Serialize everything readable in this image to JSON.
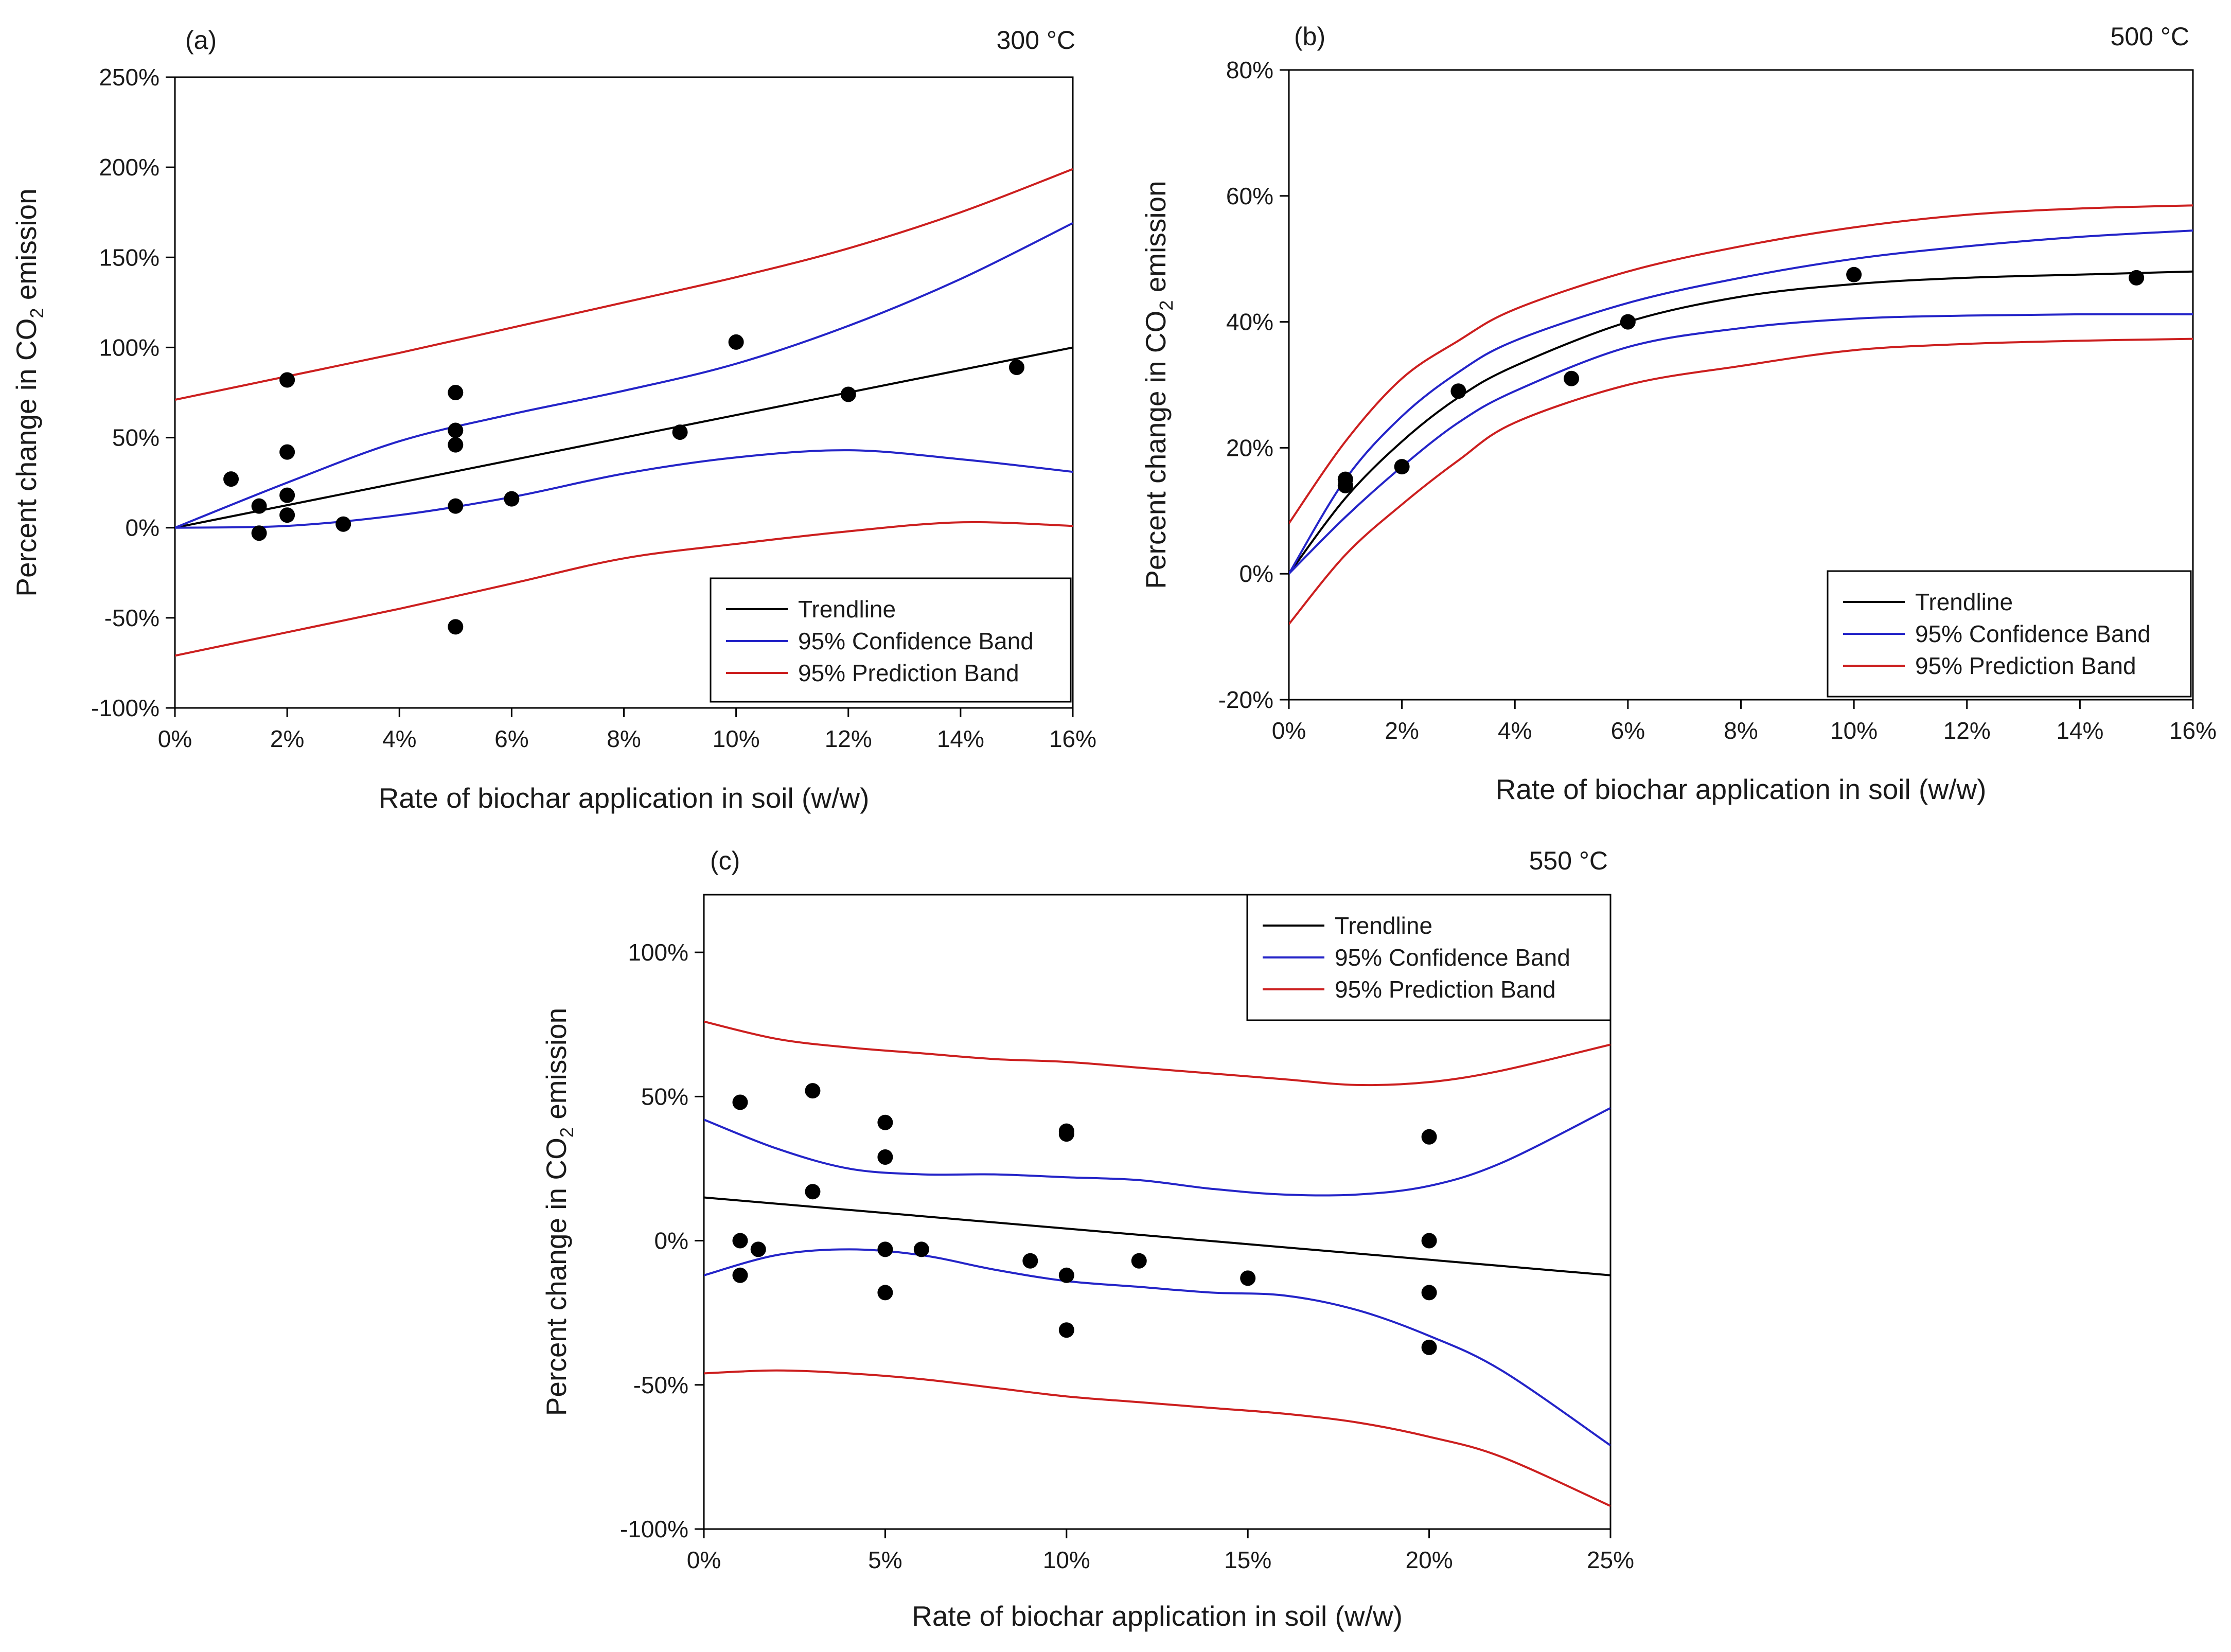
{
  "figure": {
    "colors": {
      "trend": "#000000",
      "confidence": "#2424c8",
      "prediction": "#cc1f1f",
      "point": "#000000"
    }
  },
  "chart_data": [
    {
      "type": "scatter",
      "panel_label": "(a)",
      "temperature_label": "300 °C",
      "xlabel": "Rate of biochar application in soil (w/w)",
      "ylabel_prefix": "Percent change in CO",
      "ylabel_sub": "2",
      "ylabel_suffix": " emission",
      "xlim": [
        0,
        16
      ],
      "ylim": [
        -100,
        250
      ],
      "xticks": [
        0,
        2,
        4,
        6,
        8,
        10,
        12,
        14,
        16
      ],
      "xtick_labels": [
        "0%",
        "2%",
        "4%",
        "6%",
        "8%",
        "10%",
        "12%",
        "14%",
        "16%"
      ],
      "yticks": [
        -100,
        -50,
        0,
        50,
        100,
        150,
        200,
        250
      ],
      "ytick_labels": [
        "-100%",
        "-50%",
        "0%",
        "50%",
        "100%",
        "150%",
        "200%",
        "250%"
      ],
      "legend": {
        "position": "bottom-right",
        "entries": [
          {
            "key": "trend",
            "label": "Trendline"
          },
          {
            "key": "confidence",
            "label": "95% Confidence Band"
          },
          {
            "key": "prediction",
            "label": "95% Prediction Band"
          }
        ]
      },
      "points": [
        [
          1,
          27
        ],
        [
          1.5,
          12
        ],
        [
          1.5,
          -3
        ],
        [
          2,
          82
        ],
        [
          2,
          42
        ],
        [
          2,
          18
        ],
        [
          2,
          7
        ],
        [
          3,
          2
        ],
        [
          5,
          75
        ],
        [
          5,
          54
        ],
        [
          5,
          46
        ],
        [
          5,
          12
        ],
        [
          5,
          -55
        ],
        [
          6,
          16
        ],
        [
          9,
          53
        ],
        [
          10,
          103
        ],
        [
          12,
          74
        ],
        [
          15,
          89
        ]
      ],
      "series": [
        {
          "name": "Trendline",
          "color_key": "trend",
          "x": [
            0,
            16
          ],
          "y": [
            0,
            100
          ]
        },
        {
          "name": "95% Confidence Band (upper)",
          "color_key": "confidence",
          "x": [
            0,
            2,
            4,
            6,
            8,
            10,
            12,
            14,
            16
          ],
          "y": [
            0,
            25,
            48,
            63,
            76,
            91,
            112,
            138,
            169
          ]
        },
        {
          "name": "95% Confidence Band (lower)",
          "color_key": "confidence",
          "x": [
            0,
            2,
            4,
            6,
            8,
            10,
            12,
            14,
            16
          ],
          "y": [
            0,
            1,
            7,
            17,
            30,
            39,
            43,
            38,
            31
          ]
        },
        {
          "name": "95% Prediction Band (upper)",
          "color_key": "prediction",
          "x": [
            0,
            2,
            4,
            6,
            8,
            10,
            12,
            14,
            16
          ],
          "y": [
            71,
            84,
            97,
            111,
            125,
            139,
            155,
            175,
            199
          ]
        },
        {
          "name": "95% Prediction Band (lower)",
          "color_key": "prediction",
          "x": [
            0,
            2,
            4,
            6,
            8,
            10,
            12,
            14,
            16
          ],
          "y": [
            -71,
            -58,
            -45,
            -31,
            -17,
            -9,
            -2,
            3,
            1
          ]
        }
      ]
    },
    {
      "type": "scatter",
      "panel_label": "(b)",
      "temperature_label": "500 °C",
      "xlabel": "Rate of biochar application in soil (w/w)",
      "ylabel_prefix": "Percent change in CO",
      "ylabel_sub": "2",
      "ylabel_suffix": " emission",
      "xlim": [
        0,
        16
      ],
      "ylim": [
        -20,
        80
      ],
      "xticks": [
        0,
        2,
        4,
        6,
        8,
        10,
        12,
        14,
        16
      ],
      "xtick_labels": [
        "0%",
        "2%",
        "4%",
        "6%",
        "8%",
        "10%",
        "12%",
        "14%",
        "16%"
      ],
      "yticks": [
        -20,
        0,
        20,
        40,
        60,
        80
      ],
      "ytick_labels": [
        "-20%",
        "0%",
        "20%",
        "40%",
        "60%",
        "80%"
      ],
      "legend": {
        "position": "bottom-right",
        "entries": [
          {
            "key": "trend",
            "label": "Trendline"
          },
          {
            "key": "confidence",
            "label": "95% Confidence Band"
          },
          {
            "key": "prediction",
            "label": "95% Prediction Band"
          }
        ]
      },
      "points": [
        [
          1,
          15
        ],
        [
          1,
          14
        ],
        [
          2,
          17
        ],
        [
          3,
          29
        ],
        [
          5,
          31
        ],
        [
          6,
          40
        ],
        [
          10,
          47.5
        ],
        [
          15,
          47
        ]
      ],
      "series": [
        {
          "name": "Trendline",
          "color_key": "trend",
          "x": [
            0,
            1,
            2,
            3,
            4,
            6,
            8,
            10,
            12,
            14,
            16
          ],
          "y": [
            0,
            12,
            21,
            28,
            33,
            40,
            44,
            46,
            47,
            47.5,
            48
          ]
        },
        {
          "name": "95% Confidence Band (upper)",
          "color_key": "confidence",
          "x": [
            0,
            1,
            2,
            3,
            4,
            6,
            8,
            10,
            12,
            14,
            16
          ],
          "y": [
            0,
            15,
            25,
            32,
            37,
            43,
            47,
            50,
            52,
            53.5,
            54.5
          ]
        },
        {
          "name": "95% Confidence Band (lower)",
          "color_key": "confidence",
          "x": [
            0,
            1,
            2,
            3,
            4,
            6,
            8,
            10,
            12,
            14,
            16
          ],
          "y": [
            0,
            9,
            17,
            24,
            29,
            36,
            39,
            40.5,
            41,
            41.2,
            41.2
          ]
        },
        {
          "name": "95% Prediction Band (upper)",
          "color_key": "prediction",
          "x": [
            0,
            1,
            2,
            3,
            4,
            6,
            8,
            10,
            12,
            14,
            16
          ],
          "y": [
            8,
            21,
            31,
            37,
            42,
            48,
            52,
            55,
            57,
            58,
            58.5
          ]
        },
        {
          "name": "95% Prediction Band (lower)",
          "color_key": "prediction",
          "x": [
            0,
            1,
            2,
            3,
            4,
            6,
            8,
            10,
            12,
            14,
            16
          ],
          "y": [
            -8,
            3,
            11,
            18,
            24,
            30,
            33,
            35.5,
            36.5,
            37,
            37.3
          ]
        }
      ]
    },
    {
      "type": "scatter",
      "panel_label": "(c)",
      "temperature_label": "550 °C",
      "xlabel": "Rate of biochar application in soil (w/w)",
      "ylabel_prefix": "Percent change in CO",
      "ylabel_sub": "2",
      "ylabel_suffix": " emission",
      "xlim": [
        0,
        25
      ],
      "ylim": [
        -100,
        120
      ],
      "xticks": [
        0,
        5,
        10,
        15,
        20,
        25
      ],
      "xtick_labels": [
        "0%",
        "5%",
        "10%",
        "15%",
        "20%",
        "25%"
      ],
      "yticks": [
        -100,
        -50,
        0,
        50,
        100
      ],
      "ytick_labels": [
        "-100%",
        "-50%",
        "0%",
        "50%",
        "100%"
      ],
      "legend": {
        "position": "top-right",
        "entries": [
          {
            "key": "trend",
            "label": "Trendline"
          },
          {
            "key": "confidence",
            "label": "95% Confidence Band"
          },
          {
            "key": "prediction",
            "label": "95% Prediction Band"
          }
        ]
      },
      "points": [
        [
          1,
          48
        ],
        [
          1,
          0
        ],
        [
          1,
          -12
        ],
        [
          1.5,
          -3
        ],
        [
          3,
          52
        ],
        [
          3,
          17
        ],
        [
          5,
          41
        ],
        [
          5,
          29
        ],
        [
          5,
          -3
        ],
        [
          5,
          -18
        ],
        [
          6,
          -3
        ],
        [
          9,
          -7
        ],
        [
          10,
          38
        ],
        [
          10,
          37
        ],
        [
          10,
          -12
        ],
        [
          10,
          -31
        ],
        [
          12,
          -7
        ],
        [
          15,
          -13
        ],
        [
          20,
          36
        ],
        [
          20,
          0
        ],
        [
          20,
          -18
        ],
        [
          20,
          -37
        ]
      ],
      "series": [
        {
          "name": "Trendline",
          "color_key": "trend",
          "x": [
            0,
            25
          ],
          "y": [
            15,
            -12
          ]
        },
        {
          "name": "95% Confidence Band (upper)",
          "color_key": "confidence",
          "x": [
            0,
            2,
            4,
            6,
            8,
            10,
            12,
            14,
            16,
            18,
            20,
            22,
            25
          ],
          "y": [
            42,
            32,
            25,
            23,
            23,
            22,
            21,
            18,
            16,
            16,
            19,
            27,
            46
          ]
        },
        {
          "name": "95% Confidence Band (lower)",
          "color_key": "confidence",
          "x": [
            0,
            2,
            4,
            6,
            8,
            10,
            12,
            14,
            16,
            18,
            20,
            22,
            25
          ],
          "y": [
            -12,
            -5,
            -3,
            -5,
            -10,
            -14,
            -16,
            -18,
            -19,
            -24,
            -33,
            -45,
            -71
          ]
        },
        {
          "name": "95% Prediction Band (upper)",
          "color_key": "prediction",
          "x": [
            0,
            2,
            4,
            6,
            8,
            10,
            12,
            14,
            16,
            18,
            20,
            22,
            25
          ],
          "y": [
            76,
            70,
            67,
            65,
            63,
            62,
            60,
            58,
            56,
            54,
            55,
            59,
            68
          ]
        },
        {
          "name": "95% Prediction Band (lower)",
          "color_key": "prediction",
          "x": [
            0,
            2,
            4,
            6,
            8,
            10,
            12,
            14,
            16,
            18,
            20,
            22,
            25
          ],
          "y": [
            -46,
            -45,
            -46,
            -48,
            -51,
            -54,
            -56,
            -58,
            -60,
            -63,
            -68,
            -75,
            -92
          ]
        }
      ]
    }
  ]
}
